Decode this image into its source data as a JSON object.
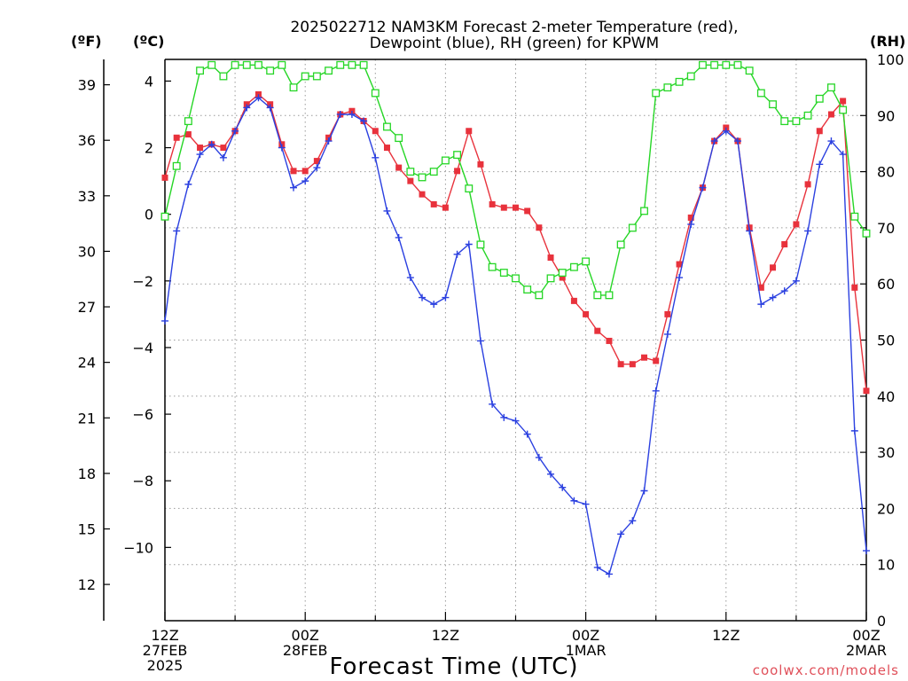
{
  "chart_data": {
    "type": "line",
    "title_line1": "2025022712 NAM3KM Forecast 2-meter Temperature (red),",
    "title_line2": "Dewpoint (blue), RH (green) for KPWM",
    "xlabel": "Forecast Time (UTC)",
    "credit": "coolwx.com/models",
    "units": {
      "f": "(ºF)",
      "c": "(ºC)",
      "rh": "(RH)"
    },
    "x_range_hours": [
      0,
      60
    ],
    "y_left_c_range": [
      -12.2,
      4.65
    ],
    "y_right_rh_range": [
      0,
      100
    ],
    "grid": true,
    "x_ticks": [
      {
        "hour": 0,
        "lines": [
          "12Z",
          "27FEB",
          "2025"
        ]
      },
      {
        "hour": 12,
        "lines": [
          "00Z",
          "28FEB"
        ]
      },
      {
        "hour": 24,
        "lines": [
          "12Z"
        ]
      },
      {
        "hour": 36,
        "lines": [
          "00Z",
          "1MAR"
        ]
      },
      {
        "hour": 48,
        "lines": [
          "12Z"
        ]
      },
      {
        "hour": 60,
        "lines": [
          "00Z",
          "2MAR"
        ]
      }
    ],
    "y_ticks_f": [
      12,
      15,
      18,
      21,
      24,
      27,
      30,
      33,
      36,
      39
    ],
    "y_ticks_c": [
      -10,
      -8,
      -6,
      -4,
      -2,
      0,
      2,
      4
    ],
    "y_ticks_rh": [
      0,
      10,
      20,
      30,
      40,
      50,
      60,
      70,
      80,
      90,
      100
    ],
    "hours": [
      0,
      1,
      2,
      3,
      4,
      5,
      6,
      7,
      8,
      9,
      10,
      11,
      12,
      13,
      14,
      15,
      16,
      17,
      18,
      19,
      20,
      21,
      22,
      23,
      24,
      25,
      26,
      27,
      28,
      29,
      30,
      31,
      32,
      33,
      34,
      35,
      36,
      37,
      38,
      39,
      40,
      41,
      42,
      43,
      44,
      45,
      46,
      47,
      48,
      49,
      50,
      51,
      52,
      53,
      54,
      55,
      56,
      57,
      58,
      59,
      60
    ],
    "series": [
      {
        "name": "2-meter Temperature",
        "unit": "C",
        "color": "#e8323c",
        "marker": "square-filled",
        "values": [
          1.1,
          2.3,
          2.4,
          2.0,
          2.1,
          2.0,
          2.5,
          3.3,
          3.6,
          3.3,
          2.1,
          1.3,
          1.3,
          1.6,
          2.3,
          3.0,
          3.1,
          2.8,
          2.5,
          2.0,
          1.4,
          1.0,
          0.6,
          0.3,
          0.2,
          1.3,
          2.5,
          1.5,
          0.3,
          0.2,
          0.2,
          0.1,
          -0.4,
          -1.3,
          -1.9,
          -2.6,
          -3.0,
          -3.5,
          -3.8,
          -4.5,
          -4.5,
          -4.3,
          -4.4,
          -3.0,
          -1.5,
          -0.1,
          0.8,
          2.2,
          2.6,
          2.2,
          -0.4,
          -2.2,
          -1.6,
          -0.9,
          -0.3,
          0.9,
          2.5,
          3.0,
          3.4,
          -2.2,
          -5.3
        ]
      },
      {
        "name": "Dewpoint",
        "unit": "C",
        "color": "#2b40e0",
        "marker": "plus",
        "values": [
          -3.2,
          -0.5,
          0.9,
          1.8,
          2.1,
          1.7,
          2.5,
          3.2,
          3.5,
          3.2,
          2.0,
          0.8,
          1.0,
          1.4,
          2.2,
          3.0,
          3.0,
          2.8,
          1.7,
          0.1,
          -0.7,
          -1.9,
          -2.5,
          -2.7,
          -2.5,
          -1.2,
          -0.9,
          -3.8,
          -5.7,
          -6.1,
          -6.2,
          -6.6,
          -7.3,
          -7.8,
          -8.2,
          -8.6,
          -8.7,
          -10.6,
          -10.8,
          -9.6,
          -9.2,
          -8.3,
          -5.3,
          -3.6,
          -1.9,
          -0.3,
          0.8,
          2.2,
          2.5,
          2.2,
          -0.5,
          -2.7,
          -2.5,
          -2.3,
          -2.0,
          -0.5,
          1.5,
          2.2,
          1.8,
          -6.5,
          -10.1
        ]
      },
      {
        "name": "RH",
        "unit": "%",
        "color": "#26d626",
        "marker": "square-open",
        "values": [
          72,
          81,
          89,
          98,
          99,
          97,
          99,
          99,
          99,
          98,
          99,
          95,
          97,
          97,
          98,
          99,
          99,
          99,
          94,
          88,
          86,
          80,
          79,
          80,
          82,
          83,
          77,
          67,
          63,
          62,
          61,
          59,
          58,
          61,
          62,
          63,
          64,
          58,
          58,
          67,
          70,
          73,
          94,
          95,
          96,
          97,
          99,
          99,
          99,
          99,
          98,
          94,
          92,
          89,
          89,
          90,
          93,
          95,
          91,
          72,
          69
        ]
      }
    ]
  }
}
